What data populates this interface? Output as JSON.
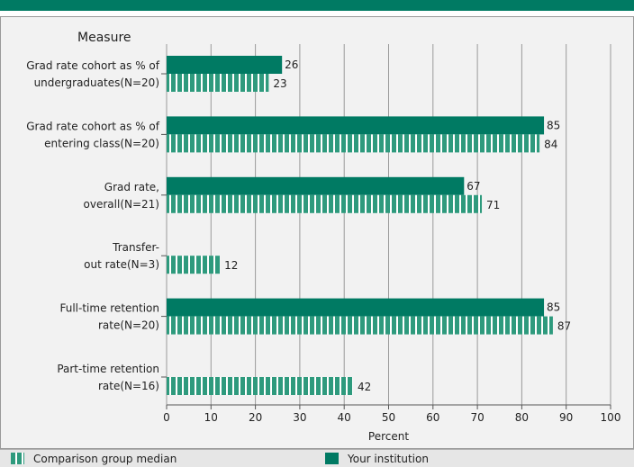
{
  "chart_data": {
    "type": "bar",
    "orientation": "horizontal",
    "category_header": "Measure",
    "categories": [
      [
        "Grad rate cohort as % of",
        "undergraduates(N=20)"
      ],
      [
        "Grad rate cohort as % of",
        "entering class(N=20)"
      ],
      [
        "Grad rate,",
        "overall(N=21)"
      ],
      [
        "Transfer-",
        "out rate(N=3)"
      ],
      [
        "Full-time retention",
        "rate(N=20)"
      ],
      [
        "Part-time retention",
        "rate(N=16)"
      ]
    ],
    "series": [
      {
        "name": "Your institution",
        "color": "#007a63",
        "pattern": "solid",
        "values": [
          26,
          85,
          67,
          null,
          85,
          null
        ]
      },
      {
        "name": "Comparison group median",
        "color": "#2e9a7d",
        "pattern": "striped",
        "values": [
          23,
          84,
          71,
          12,
          87,
          42
        ]
      }
    ],
    "xlabel": "Percent",
    "xlim": [
      0,
      100
    ],
    "xticks": [
      0,
      10,
      20,
      30,
      40,
      50,
      60,
      70,
      80,
      90,
      100
    ],
    "grid": true,
    "legend_position": "bottom"
  },
  "legend": {
    "comparison_label": "Comparison group median",
    "institution_label": "Your institution"
  },
  "colors": {
    "accent": "#007a63",
    "comparison": "#2e9a7d",
    "grid": "#9a9a9a",
    "panel": "#f2f2f2"
  }
}
